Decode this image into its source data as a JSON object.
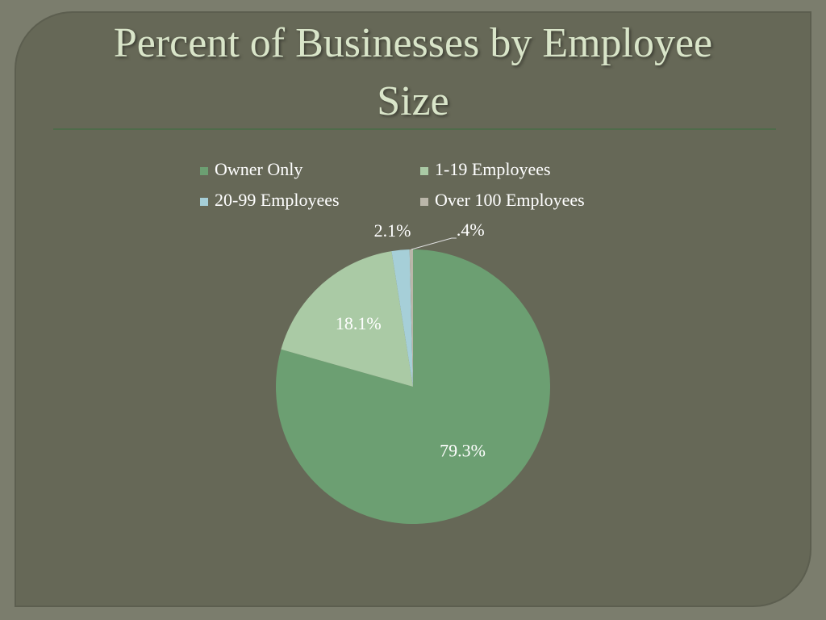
{
  "chart_data": {
    "type": "pie",
    "title": "Percent of Businesses by Employee Size",
    "categories": [
      "Owner Only",
      "1-19 Employees",
      "20-99 Employees",
      "Over 100 Employees"
    ],
    "values": [
      79.3,
      18.1,
      2.1,
      0.4
    ],
    "value_labels": [
      "79.3%",
      "18.1%",
      "2.1%",
      ".4%"
    ],
    "colors": [
      "#6c9f72",
      "#aacaa5",
      "#a6cfd8",
      "#bab6a9"
    ],
    "legend": "top"
  }
}
